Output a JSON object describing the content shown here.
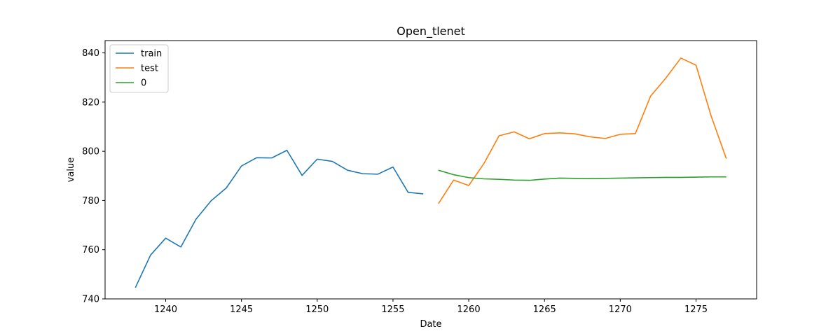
{
  "chart_data": {
    "type": "line",
    "title": "Open_tlenet",
    "xlabel": "Date",
    "ylabel": "value",
    "xlim": [
      1236,
      1279
    ],
    "ylim": [
      740,
      845
    ],
    "xticks": [
      1240,
      1245,
      1250,
      1255,
      1260,
      1265,
      1270,
      1275
    ],
    "yticks": [
      740,
      760,
      780,
      800,
      820,
      840
    ],
    "grid": false,
    "legend_position": "top-left",
    "series": [
      {
        "name": "train",
        "color": "#1f77b4",
        "x": [
          1238,
          1239,
          1240,
          1241,
          1242,
          1243,
          1244,
          1245,
          1246,
          1247,
          1248,
          1249,
          1250,
          1251,
          1252,
          1253,
          1254,
          1255,
          1256,
          1257
        ],
        "values": [
          744.6,
          757.8,
          764.7,
          761.1,
          772.4,
          779.9,
          785.1,
          794.0,
          797.4,
          797.3,
          800.4,
          790.2,
          796.8,
          795.9,
          792.3,
          790.9,
          790.7,
          793.6,
          783.3,
          782.7
        ]
      },
      {
        "name": "test",
        "color": "#ff7f0e",
        "x": [
          1258,
          1259,
          1260,
          1261,
          1262,
          1263,
          1264,
          1265,
          1266,
          1267,
          1268,
          1269,
          1270,
          1271,
          1272,
          1273,
          1274,
          1275,
          1276,
          1277
        ],
        "values": [
          778.7,
          788.3,
          786.1,
          795.0,
          806.3,
          807.9,
          805.1,
          807.2,
          807.5,
          807.1,
          805.9,
          805.2,
          806.9,
          807.2,
          822.4,
          829.7,
          837.9,
          835.0,
          814.3,
          797.0
        ]
      },
      {
        "name": "0",
        "color": "#2ca02c",
        "x": [
          1258,
          1259,
          1260,
          1261,
          1262,
          1263,
          1264,
          1265,
          1266,
          1267,
          1268,
          1269,
          1270,
          1271,
          1272,
          1273,
          1274,
          1275,
          1276,
          1277
        ],
        "values": [
          792.3,
          790.5,
          789.3,
          788.8,
          788.6,
          788.3,
          788.2,
          788.7,
          789.1,
          789.0,
          788.9,
          789.0,
          789.1,
          789.2,
          789.3,
          789.4,
          789.4,
          789.5,
          789.6,
          789.6
        ]
      }
    ]
  }
}
